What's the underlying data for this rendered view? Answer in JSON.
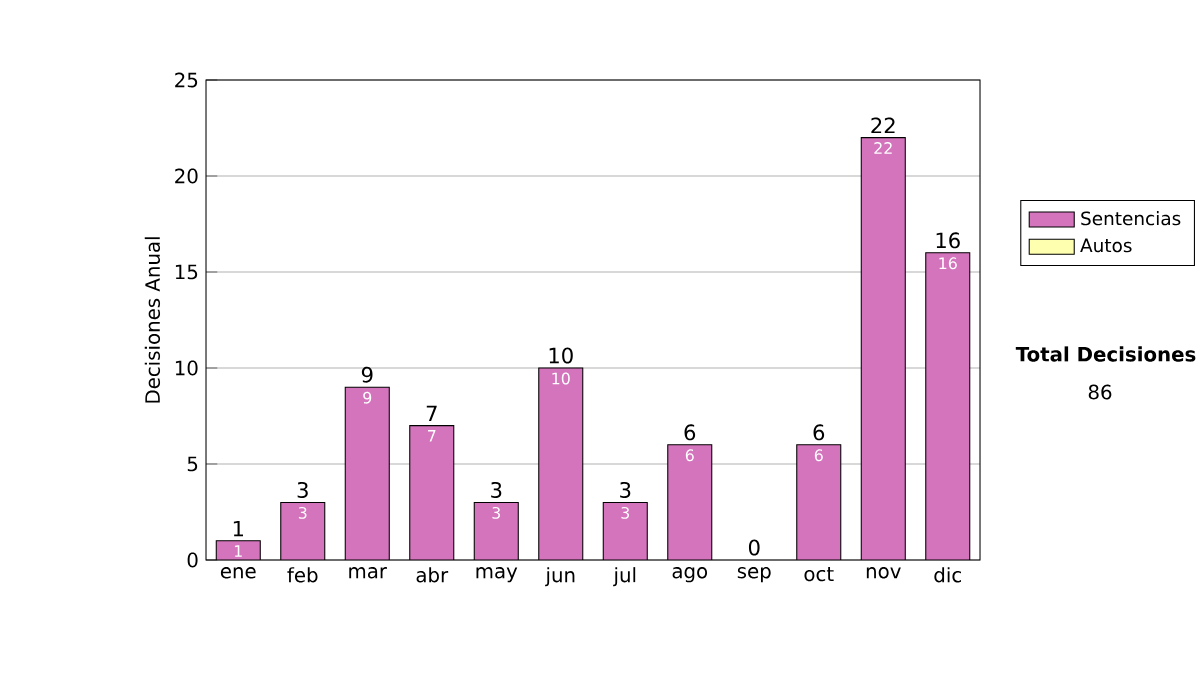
{
  "chart_data": {
    "type": "bar",
    "ylabel": "Decisiones Anual",
    "categories": [
      "ene",
      "feb",
      "mar",
      "abr",
      "may",
      "jun",
      "jul",
      "ago",
      "sep",
      "oct",
      "nov",
      "dic"
    ],
    "stacked": true,
    "series": [
      {
        "name": "Sentencias",
        "color": "#d474bc",
        "values": [
          1,
          3,
          9,
          7,
          3,
          10,
          3,
          6,
          0,
          6,
          22,
          16
        ],
        "value_labels": [
          "1",
          "3",
          "9",
          "7",
          "3",
          "10",
          "3",
          "6",
          null,
          "6",
          "22",
          "16"
        ]
      },
      {
        "name": "Autos",
        "color": "#ffffb0",
        "values": [
          0,
          0,
          0,
          0,
          0,
          0,
          0,
          0,
          0,
          0,
          0,
          0
        ]
      }
    ],
    "totals": [
      "1",
      "3",
      "9",
      "7",
      "3",
      "10",
      "3",
      "6",
      "0",
      "6",
      "22",
      "16"
    ],
    "ylim": [
      0,
      25
    ],
    "yticks": [
      0,
      5,
      10,
      15,
      20,
      25
    ],
    "grid": "y",
    "legend": "right",
    "annotations": [
      "Total Decisiones",
      "86"
    ]
  }
}
